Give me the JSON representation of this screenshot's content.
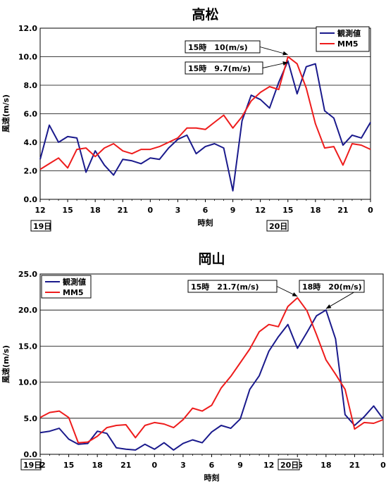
{
  "chart_data": [
    {
      "type": "line",
      "title": "高松",
      "xlabel": "時刻",
      "ylabel": "風速(m/s)",
      "ylim": [
        0,
        12
      ],
      "yticks": [
        "0.0",
        "2.0",
        "4.0",
        "6.0",
        "8.0",
        "10.0",
        "12.0"
      ],
      "xtick_labels": [
        "12",
        "15",
        "18",
        "21",
        "0",
        "3",
        "6",
        "9",
        "12",
        "15",
        "18",
        "21",
        "0"
      ],
      "day_labels": [
        "19日",
        "20日"
      ],
      "grid": "horizontal",
      "legend_placement": "top-right",
      "series": [
        {
          "name": "観測値",
          "color": "#1a1a8c",
          "values": [
            2.8,
            5.2,
            4.0,
            4.4,
            4.3,
            1.9,
            3.4,
            2.4,
            1.7,
            2.8,
            2.7,
            2.5,
            2.9,
            2.8,
            3.6,
            4.2,
            4.5,
            3.2,
            3.7,
            3.9,
            3.6,
            0.6,
            5.5,
            7.3,
            7.0,
            6.4,
            8.2,
            9.7,
            7.4,
            9.3,
            9.5,
            6.2,
            5.7,
            3.8,
            4.5,
            4.3,
            5.4
          ]
        },
        {
          "name": "MM5",
          "color": "#ee1c1c",
          "values": [
            2.1,
            2.5,
            2.9,
            2.2,
            3.5,
            3.6,
            3.0,
            3.6,
            3.9,
            3.4,
            3.2,
            3.5,
            3.5,
            3.7,
            4.0,
            4.3,
            5.0,
            5.0,
            4.9,
            5.4,
            5.9,
            5.0,
            5.8,
            6.9,
            7.5,
            7.9,
            7.7,
            10.0,
            9.5,
            7.8,
            5.3,
            3.6,
            3.7,
            2.4,
            3.9,
            3.8,
            3.5
          ]
        }
      ],
      "annotations": [
        {
          "text": "15時　10(m/s)",
          "x_index": 27,
          "value": 10.0
        },
        {
          "text": "15時　9.7(m/s)",
          "x_index": 27,
          "value": 9.7
        }
      ]
    },
    {
      "type": "line",
      "title": "岡山",
      "xlabel": "時刻",
      "ylabel": "風速(m/s)",
      "ylim": [
        0,
        25
      ],
      "yticks": [
        "0.0",
        "5.0",
        "10.0",
        "15.0",
        "20.0",
        "25.0"
      ],
      "xtick_labels": [
        "12",
        "15",
        "18",
        "21",
        "0",
        "3",
        "6",
        "9",
        "12",
        "15",
        "18",
        "21",
        "0"
      ],
      "day_labels": [
        "19日",
        "20日"
      ],
      "grid": "horizontal",
      "legend_placement": "top-left",
      "series": [
        {
          "name": "観測値",
          "color": "#1a1a8c",
          "values": [
            3.0,
            3.2,
            3.6,
            2.1,
            1.4,
            1.5,
            3.2,
            2.9,
            0.9,
            0.7,
            0.6,
            1.4,
            0.7,
            1.6,
            0.6,
            1.5,
            2.0,
            1.6,
            3.1,
            4.0,
            3.6,
            4.9,
            9.0,
            10.9,
            14.3,
            16.3,
            18.0,
            14.7,
            16.9,
            19.2,
            20.0,
            16.0,
            5.5,
            4.0,
            5.2,
            6.7,
            4.9
          ]
        },
        {
          "name": "MM5",
          "color": "#ee1c1c",
          "values": [
            5.1,
            5.8,
            6.0,
            5.1,
            1.6,
            1.7,
            2.5,
            3.7,
            4.0,
            4.1,
            2.3,
            4.0,
            4.4,
            4.2,
            3.7,
            4.8,
            6.4,
            6.0,
            6.8,
            9.2,
            10.8,
            12.7,
            14.6,
            17.0,
            18.0,
            17.7,
            20.5,
            21.7,
            19.9,
            16.6,
            13.1,
            11.1,
            9.0,
            3.5,
            4.4,
            4.3,
            4.8
          ]
        }
      ],
      "annotations": [
        {
          "text": "15時　21.7(m/s)",
          "x_index": 27,
          "value": 21.7
        },
        {
          "text": "18時　20(m/s)",
          "x_index": 30,
          "value": 20.0
        }
      ]
    }
  ]
}
